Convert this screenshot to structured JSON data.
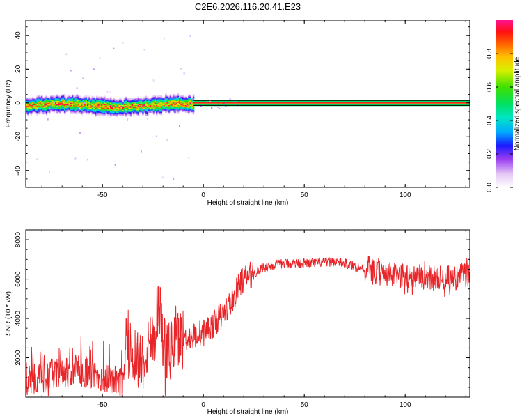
{
  "title": "C2E6.2026.116.20.41.E23",
  "colors": {
    "snr_line": "#e8262a",
    "axis": "#000000",
    "center_line": "#e8262a",
    "band_line": "#000000"
  },
  "chart_data": [
    {
      "type": "heatmap",
      "id": "spectrogram",
      "xlabel": "Height of straight line (km)",
      "ylabel": "Frequency (Hz)",
      "xlim": [
        -88,
        132
      ],
      "ylim": [
        -50,
        49
      ],
      "xticks": [
        -50,
        0,
        50,
        100
      ],
      "yticks": [
        -40,
        -20,
        0,
        20,
        40
      ],
      "grid": false,
      "center_frequency": 0,
      "band_edges": [
        -1.5,
        1.5
      ],
      "steady_start_x": -5,
      "colorbar": {
        "label": "Normalized spectral amplitude",
        "range": [
          0.0,
          1.0
        ],
        "ticks": [
          0.0,
          0.2,
          0.4,
          0.6,
          0.8
        ]
      }
    },
    {
      "type": "line",
      "id": "snr",
      "xlabel": "Height of straight line (km)",
      "ylabel": "SNR (10 * v/v)",
      "xlim": [
        -88,
        132
      ],
      "ylim": [
        0,
        8500
      ],
      "xticks": [
        -50,
        0,
        50,
        100
      ],
      "yticks": [
        2000,
        4000,
        6000,
        8000
      ],
      "grid": false,
      "series": [
        {
          "x": [
            -88,
            -80,
            -70,
            -60,
            -50,
            -45,
            -40,
            -38,
            -35,
            -30,
            -27,
            -24,
            -22,
            -20,
            -17,
            -14,
            -10,
            -5,
            0,
            5,
            10,
            15,
            18,
            20,
            25,
            30,
            40,
            50,
            60,
            65,
            70,
            80,
            90,
            100,
            110,
            120,
            125,
            130,
            132
          ],
          "values": [
            500,
            700,
            900,
            1000,
            700,
            500,
            400,
            2500,
            2200,
            1800,
            2800,
            3200,
            5200,
            2800,
            2200,
            2900,
            3000,
            3100,
            3300,
            3700,
            4300,
            5000,
            5800,
            6000,
            6300,
            6600,
            6800,
            6800,
            6850,
            6900,
            6800,
            6500,
            6300,
            6200,
            6150,
            6100,
            6150,
            6300,
            6400
          ]
        }
      ]
    }
  ]
}
